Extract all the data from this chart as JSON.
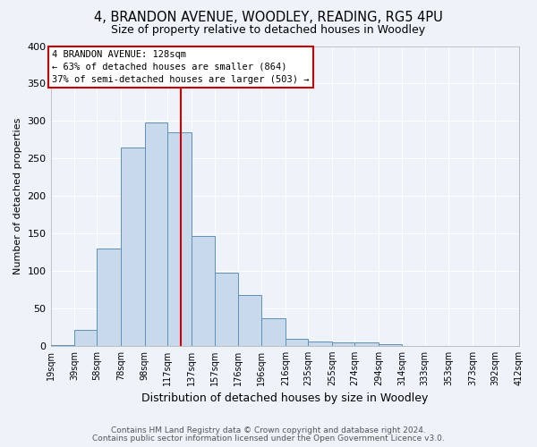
{
  "title1": "4, BRANDON AVENUE, WOODLEY, READING, RG5 4PU",
  "title2": "Size of property relative to detached houses in Woodley",
  "xlabel": "Distribution of detached houses by size in Woodley",
  "ylabel": "Number of detached properties",
  "footer1": "Contains HM Land Registry data © Crown copyright and database right 2024.",
  "footer2": "Contains public sector information licensed under the Open Government Licence v3.0.",
  "bar_color": "#c9d9ec",
  "bar_edge_color": "#6090b8",
  "vline_color": "#cc0000",
  "vline_x": 128,
  "annotation_line1": "4 BRANDON AVENUE: 128sqm",
  "annotation_line2": "← 63% of detached houses are smaller (864)",
  "annotation_line3": "37% of semi-detached houses are larger (503) →",
  "bins": [
    19,
    39,
    58,
    78,
    98,
    117,
    137,
    157,
    176,
    196,
    216,
    235,
    255,
    274,
    294,
    314,
    333,
    353,
    373,
    392,
    412
  ],
  "heights": [
    1,
    21,
    130,
    265,
    298,
    285,
    147,
    97,
    68,
    37,
    9,
    6,
    5,
    4,
    2,
    0,
    0,
    0,
    0,
    0
  ],
  "ylim": [
    0,
    400
  ],
  "yticks": [
    0,
    50,
    100,
    150,
    200,
    250,
    300,
    350,
    400
  ],
  "bg_color": "#eef2f9",
  "title1_fontsize": 10.5,
  "title2_fontsize": 9,
  "ylabel_fontsize": 8,
  "xlabel_fontsize": 9,
  "tick_fontsize": 7,
  "footer_fontsize": 6.5
}
